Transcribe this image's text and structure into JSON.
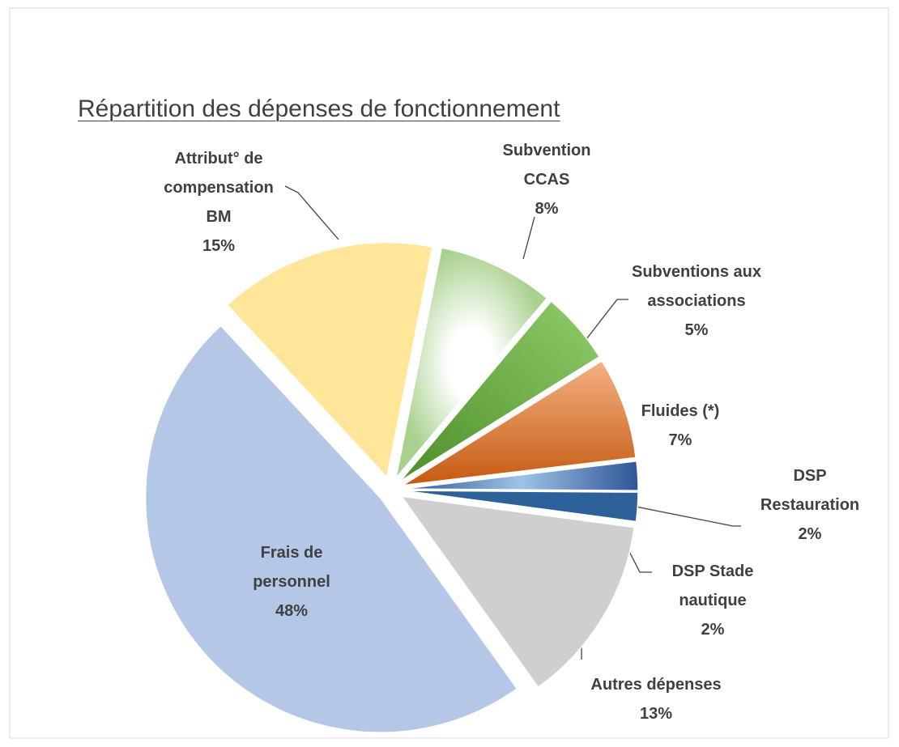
{
  "chart_data": {
    "type": "pie",
    "title": "Répartition des dépenses de fonctionnement",
    "categories": [
      "Attribut° de compensation BM",
      "Subvention CCAS",
      "Subventions aux associations",
      "Fluides (*)",
      "DSP Restauration",
      "DSP Stade nautique",
      "Autres dépenses",
      "Frais de personnel"
    ],
    "values": [
      15,
      8,
      5,
      7,
      2,
      2,
      13,
      48
    ],
    "value_labels": [
      "15%",
      "8%",
      "5%",
      "7%",
      "2%",
      "2%",
      "13%",
      "48%"
    ],
    "colors": [
      "#ffe699",
      "#c5e0b4",
      "#70ad47",
      "#ed7d31",
      "#4472c4",
      "#2e6099",
      "#d0cece",
      "#b4c7e7"
    ]
  }
}
